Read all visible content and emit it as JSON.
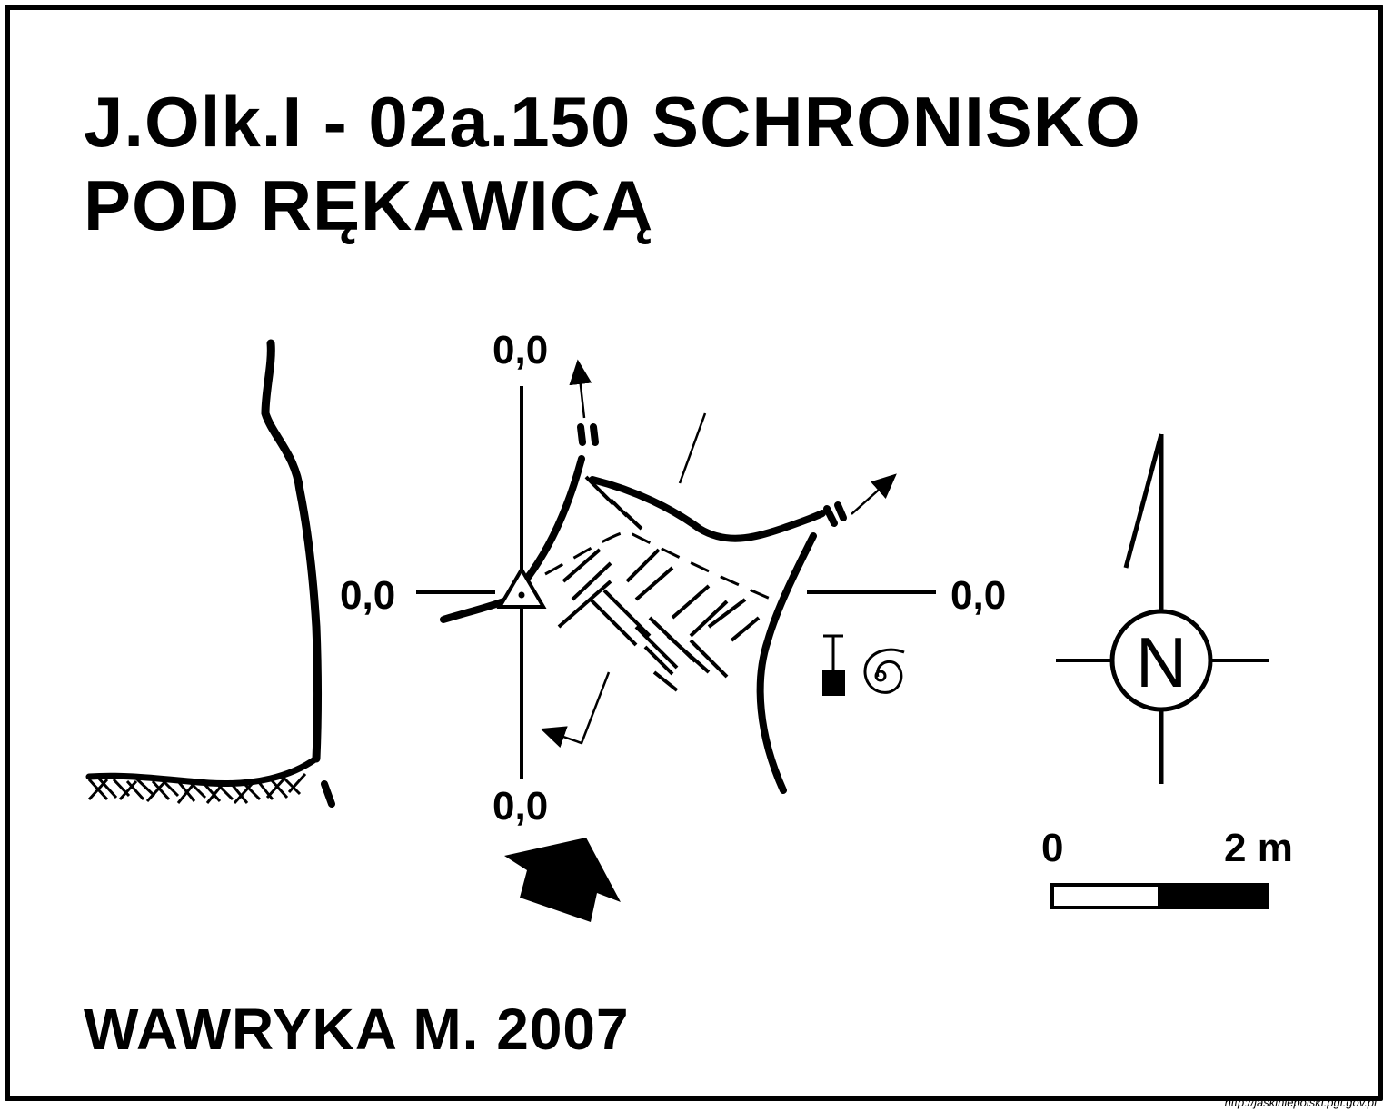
{
  "title": {
    "line1": "J.Olk.I - 02a.150  SCHRONISKO",
    "line2": "POD RĘKAWICĄ"
  },
  "author": "WAWRYKA M. 2007",
  "credit": "http://jaskiniepolski.pgi.gov.pl",
  "cross_section": {
    "top": "0,0",
    "left": "0,0",
    "right": "0,0",
    "bottom": "0,0"
  },
  "compass": {
    "letter": "N"
  },
  "scale": {
    "start": "0",
    "end": "2 m"
  },
  "colors": {
    "ink": "#000000",
    "paper": "#ffffff"
  }
}
